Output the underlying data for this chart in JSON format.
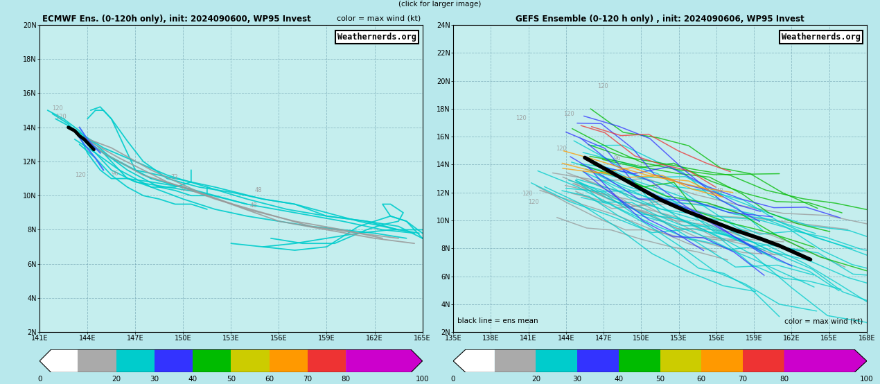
{
  "left_panel": {
    "title": "ECMWF Ens. (0-120h only), init: 2024090600, WP95 Invest",
    "color_label": "color = max wind (kt)",
    "xlim": [
      141,
      165
    ],
    "ylim": [
      2,
      20
    ],
    "xticks": [
      141,
      144,
      147,
      150,
      153,
      156,
      159,
      162,
      165
    ],
    "yticks": [
      2,
      4,
      6,
      8,
      10,
      12,
      14,
      16,
      18,
      20
    ],
    "bg_color": "#c5eeee",
    "watermark": "Weathernerds.org",
    "grid_color": "#6699aa",
    "grid_style": "--"
  },
  "right_panel": {
    "title": "GEFS Ensemble (0-120 h only) , init: 2024090606, WP95 Invest",
    "color_label": "color = max wind (kt)",
    "xlim": [
      135,
      168
    ],
    "ylim": [
      2,
      24
    ],
    "xticks": [
      135,
      138,
      141,
      144,
      147,
      150,
      153,
      156,
      159,
      162,
      165,
      168
    ],
    "yticks": [
      2,
      4,
      6,
      8,
      10,
      12,
      14,
      16,
      18,
      20,
      22,
      24
    ],
    "bg_color": "#c5eeee",
    "watermark": "Weathernerds.org",
    "grid_color": "#6699aa",
    "grid_style": "--"
  },
  "top_note": "(click for larger image)",
  "fig_bg": "#b8e8ec",
  "cb_colors": [
    "#ffffff",
    "#aaaaaa",
    "#00cccc",
    "#3333ff",
    "#00bb00",
    "#cccc00",
    "#ff9900",
    "#ee3333",
    "#cc00cc"
  ],
  "cb_bounds": [
    0,
    10,
    20,
    30,
    40,
    50,
    60,
    70,
    80,
    100
  ],
  "cb_labels": [
    "0",
    "20",
    "30",
    "40",
    "50",
    "60",
    "70",
    "80",
    "100"
  ],
  "cb_label_vals": [
    0,
    20,
    30,
    40,
    50,
    60,
    70,
    80,
    100
  ]
}
